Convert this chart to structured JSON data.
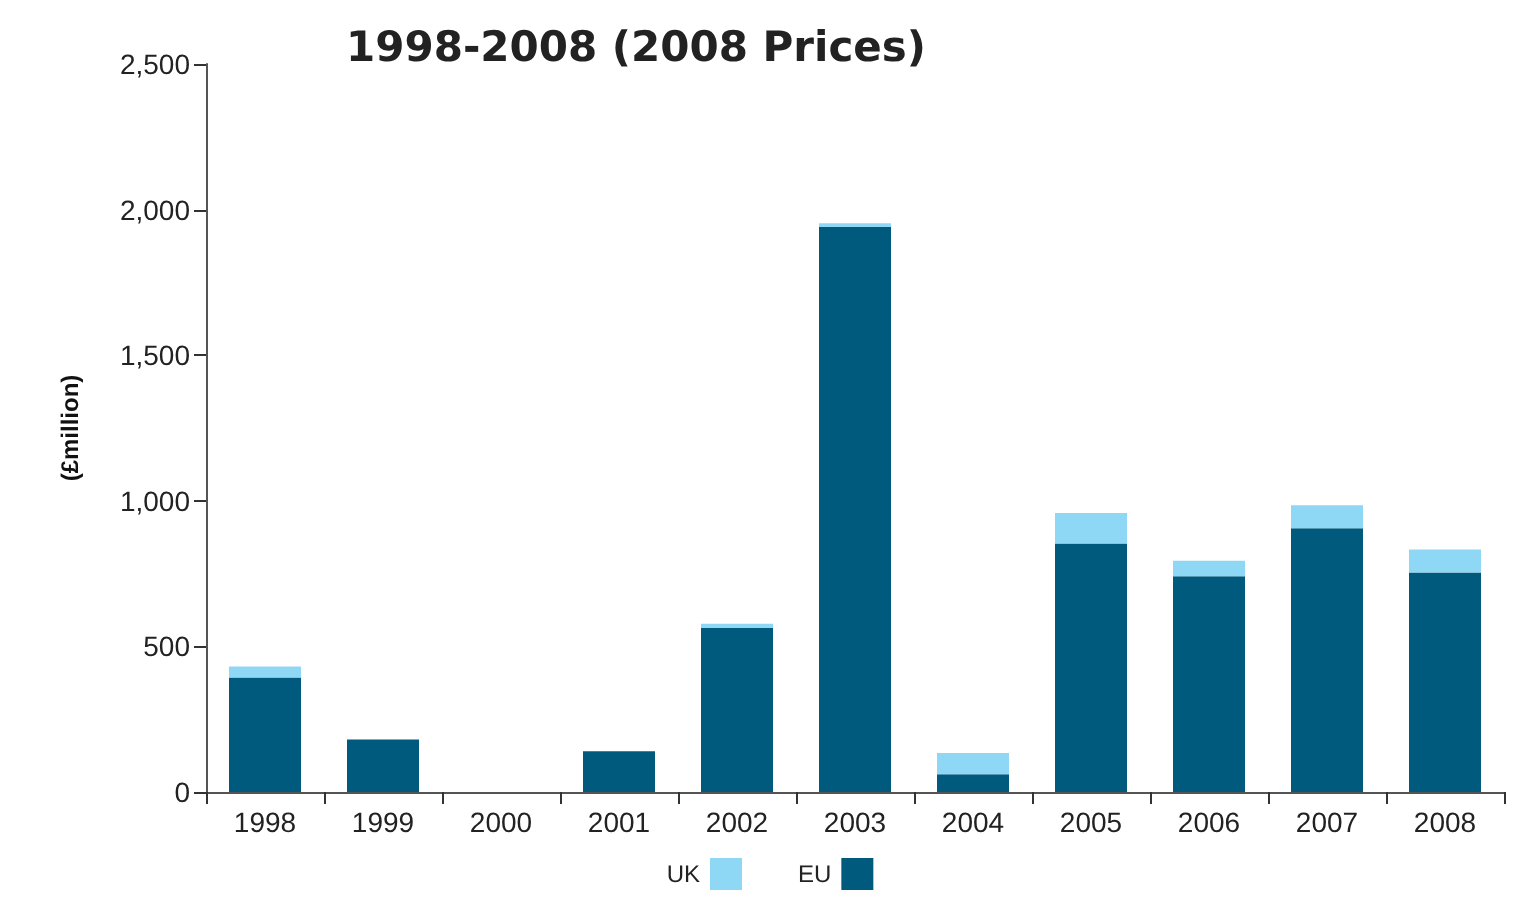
{
  "chart_data": {
    "type": "bar",
    "title": "1998-2008 (2008 Prices)",
    "ylabel": "(£million)",
    "categories": [
      "1998",
      "1999",
      "2000",
      "2001",
      "2002",
      "2003",
      "2004",
      "2005",
      "2006",
      "2007",
      "2008"
    ],
    "stacked": true,
    "series": [
      {
        "name": "EU",
        "color": "#005a7d",
        "values": [
          393,
          180,
          0,
          140,
          563,
          1940,
          61,
          853,
          741,
          906,
          754
        ]
      },
      {
        "name": "UK",
        "color": "#8fd8f5",
        "values": [
          38,
          0,
          0,
          0,
          15,
          13,
          73,
          105,
          53,
          79,
          79
        ]
      }
    ],
    "ylim": [
      0,
      2500
    ],
    "yticks": [
      0,
      500,
      {
        "value": 1000,
        "label": "1,000"
      },
      {
        "value": 1500,
        "label": "1,500"
      },
      {
        "value": 2000,
        "label": "2,000"
      },
      {
        "value": 2500,
        "label": "2,500"
      }
    ],
    "grid": false,
    "legend": "bottom"
  }
}
